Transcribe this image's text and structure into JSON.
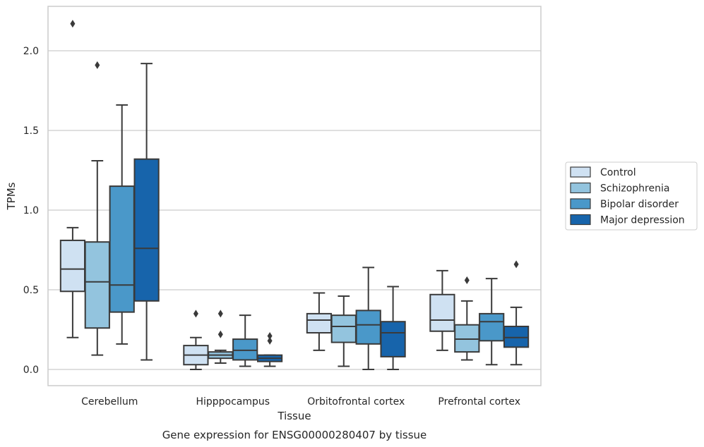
{
  "chart_data": {
    "type": "box",
    "caption": "Gene expression for ENSG00000280407 by tissue",
    "xlabel": "Tissue",
    "ylabel": "TPMs",
    "ylim": [
      -0.1,
      2.28
    ],
    "yticks": [
      0.0,
      0.5,
      1.0,
      1.5,
      2.0
    ],
    "ytick_labels": [
      "0.0",
      "0.5",
      "1.0",
      "1.5",
      "2.0"
    ],
    "grid": "horizontal",
    "legend_position": "right",
    "categories": [
      "Cerebellum",
      "Hipppocampus",
      "Orbitofrontal cortex",
      "Prefrontal cortex"
    ],
    "series": [
      {
        "name": "Control",
        "color": "#cfe1f2",
        "boxes": [
          {
            "whislo": 0.2,
            "q1": 0.49,
            "med": 0.63,
            "q3": 0.81,
            "whishi": 0.89,
            "fliers": [
              2.17
            ]
          },
          {
            "whislo": 0.0,
            "q1": 0.03,
            "med": 0.09,
            "q3": 0.15,
            "whishi": 0.2,
            "fliers": [
              0.35
            ]
          },
          {
            "whislo": 0.12,
            "q1": 0.23,
            "med": 0.31,
            "q3": 0.35,
            "whishi": 0.48,
            "fliers": []
          },
          {
            "whislo": 0.12,
            "q1": 0.24,
            "med": 0.31,
            "q3": 0.47,
            "whishi": 0.62,
            "fliers": []
          }
        ]
      },
      {
        "name": "Schizophrenia",
        "color": "#93c4de",
        "boxes": [
          {
            "whislo": 0.09,
            "q1": 0.26,
            "med": 0.55,
            "q3": 0.8,
            "whishi": 1.31,
            "fliers": [
              1.91
            ]
          },
          {
            "whislo": 0.04,
            "q1": 0.07,
            "med": 0.09,
            "q3": 0.11,
            "whishi": 0.12,
            "fliers": [
              0.35,
              0.22
            ]
          },
          {
            "whislo": 0.02,
            "q1": 0.17,
            "med": 0.27,
            "q3": 0.34,
            "whishi": 0.46,
            "fliers": []
          },
          {
            "whislo": 0.06,
            "q1": 0.11,
            "med": 0.19,
            "q3": 0.28,
            "whishi": 0.43,
            "fliers": [
              0.56
            ]
          }
        ]
      },
      {
        "name": "Bipolar disorder",
        "color": "#4a98c9",
        "boxes": [
          {
            "whislo": 0.16,
            "q1": 0.36,
            "med": 0.53,
            "q3": 1.15,
            "whishi": 1.66,
            "fliers": []
          },
          {
            "whislo": 0.02,
            "q1": 0.06,
            "med": 0.12,
            "q3": 0.19,
            "whishi": 0.34,
            "fliers": []
          },
          {
            "whislo": 0.0,
            "q1": 0.16,
            "med": 0.28,
            "q3": 0.37,
            "whishi": 0.64,
            "fliers": []
          },
          {
            "whislo": 0.03,
            "q1": 0.18,
            "med": 0.3,
            "q3": 0.35,
            "whishi": 0.57,
            "fliers": []
          }
        ]
      },
      {
        "name": "Major depression",
        "color": "#1764ab",
        "boxes": [
          {
            "whislo": 0.06,
            "q1": 0.43,
            "med": 0.76,
            "q3": 1.32,
            "whishi": 1.92,
            "fliers": []
          },
          {
            "whislo": 0.02,
            "q1": 0.05,
            "med": 0.07,
            "q3": 0.09,
            "whishi": 0.09,
            "fliers": [
              0.21,
              0.18
            ]
          },
          {
            "whislo": 0.0,
            "q1": 0.08,
            "med": 0.23,
            "q3": 0.3,
            "whishi": 0.52,
            "fliers": []
          },
          {
            "whislo": 0.03,
            "q1": 0.14,
            "med": 0.2,
            "q3": 0.27,
            "whishi": 0.39,
            "fliers": [
              0.66
            ]
          }
        ]
      }
    ]
  }
}
